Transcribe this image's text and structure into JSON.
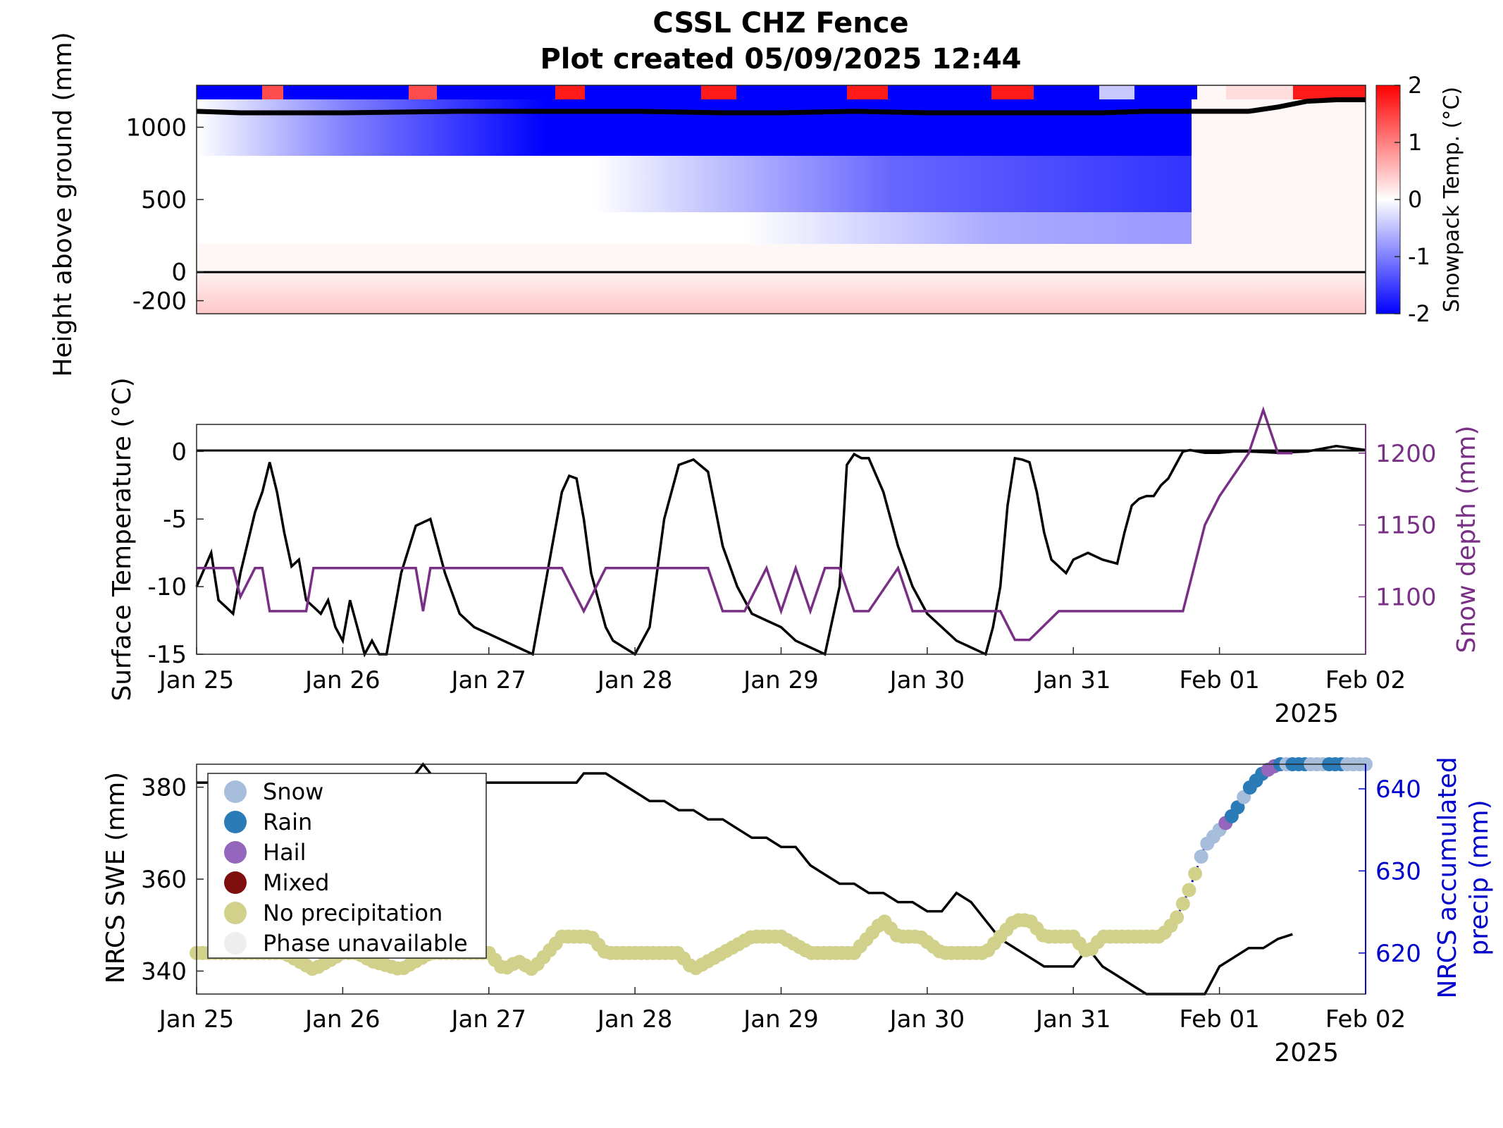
{
  "title": {
    "line1": "CSSL CHZ Fence",
    "line2": "Plot created 05/09/2025 12:44"
  },
  "colors": {
    "swe_line": "#000000",
    "snow_depth": "#7a2f86",
    "precip_line": "#0000cc",
    "cold": "#0000ff",
    "warm": "#ff0000",
    "snow": "#a6bddb",
    "rain": "#2b7bb9",
    "hail": "#9467bd",
    "mixed": "#7f0f0f",
    "no_precip": "#d2d18c",
    "unavailable": "#eeeeee"
  },
  "chart_data": [
    {
      "type": "heatmap",
      "name_panel": "snowpack temperature",
      "ylabel": "Height above ground (mm)",
      "ylim": [
        -290,
        1290
      ],
      "yticks": [
        -200,
        0,
        500,
        1000
      ],
      "colorbar": {
        "label": "Snowpack Temp. (°C)",
        "range": [
          -2,
          2
        ],
        "ticks": [
          -2,
          -1,
          0,
          1,
          2
        ],
        "colormap": "blue-white-red"
      },
      "xlim": [
        "2025-01-25",
        "2025-02-02"
      ],
      "sensor_rows_mm": [
        1250,
        1150,
        1050,
        950,
        850,
        750,
        650,
        550,
        450,
        350,
        250,
        150,
        50,
        -50,
        -150,
        -250
      ],
      "snow_surface_mm": [
        [
          0,
          1110
        ],
        [
          0.3,
          1100
        ],
        [
          0.5,
          1100
        ],
        [
          1,
          1100
        ],
        [
          1.8,
          1110
        ],
        [
          2.5,
          1110
        ],
        [
          3,
          1110
        ],
        [
          3.6,
          1100
        ],
        [
          4,
          1100
        ],
        [
          4.5,
          1110
        ],
        [
          5,
          1100
        ],
        [
          5.5,
          1100
        ],
        [
          6.2,
          1100
        ],
        [
          6.5,
          1110
        ],
        [
          7.2,
          1110
        ],
        [
          7.4,
          1140
        ],
        [
          7.6,
          1180
        ],
        [
          7.8,
          1190
        ],
        [
          8,
          1190
        ]
      ]
    },
    {
      "type": "line",
      "name_panel": "surface temperature and snow depth",
      "x_start": "2025-01-25",
      "xlim": [
        "Jan 25",
        "Feb 02"
      ],
      "xticks": [
        "Jan 25",
        "Jan 26",
        "Jan 27",
        "Jan 28",
        "Jan 29",
        "Jan 30",
        "Jan 31",
        "Feb 01",
        "Feb 02"
      ],
      "xyear": "2025",
      "ylabel": "Surface Temperature (°C)",
      "ylim": [
        -15,
        2
      ],
      "yticks": [
        -15,
        -10,
        -5,
        0
      ],
      "y2label": "Snow depth (mm)",
      "y2lim": [
        1060,
        1220
      ],
      "y2ticks": [
        1100,
        1150,
        1200
      ],
      "series": [
        {
          "axis": "left",
          "x_days": [
            0,
            0.1,
            0.15,
            0.2,
            0.25,
            0.3,
            0.4,
            0.45,
            0.5,
            0.55,
            0.6,
            0.65,
            0.7,
            0.75,
            0.8,
            0.85,
            0.9,
            0.95,
            1,
            1.05,
            1.1,
            1.15,
            1.2,
            1.25,
            1.3,
            1.4,
            1.5,
            1.6,
            1.7,
            1.8,
            1.9,
            2,
            2.1,
            2.2,
            2.3,
            2.4,
            2.5,
            2.55,
            2.6,
            2.65,
            2.7,
            2.75,
            2.8,
            2.85,
            3,
            3.1,
            3.2,
            3.3,
            3.4,
            3.5,
            3.6,
            3.7,
            3.8,
            3.9,
            4,
            4.1,
            4.2,
            4.3,
            4.4,
            4.45,
            4.5,
            4.55,
            4.6,
            4.7,
            4.8,
            4.9,
            5,
            5.1,
            5.2,
            5.3,
            5.4,
            5.45,
            5.5,
            5.55,
            5.6,
            5.65,
            5.7,
            5.75,
            5.8,
            5.85,
            5.9,
            5.95,
            6,
            6.1,
            6.2,
            6.3,
            6.35,
            6.4,
            6.45,
            6.5,
            6.55,
            6.6,
            6.65,
            6.7,
            6.75,
            6.8,
            6.85,
            6.9,
            7,
            7.1,
            7.2,
            7.4,
            7.6,
            7.8,
            8
          ],
          "values": [
            -10,
            -7.5,
            -11,
            -11.5,
            -12,
            -9,
            -4.5,
            -3,
            -0.8,
            -3,
            -6,
            -8.5,
            -8,
            -11,
            -11.5,
            -12,
            -11,
            -13,
            -14,
            -11,
            -13,
            -15,
            -14,
            -15.5,
            -15.5,
            -9,
            -5.5,
            -5,
            -9,
            -12,
            -13,
            -13.5,
            -14,
            -14.5,
            -15,
            -9,
            -3,
            -1.8,
            -2,
            -5,
            -9,
            -11,
            -13,
            -14,
            -15.5,
            -13,
            -5,
            -1,
            -0.6,
            -1.5,
            -7,
            -10,
            -12,
            -12.5,
            -13,
            -14,
            -14.5,
            -15.5,
            -10,
            -1,
            -0.2,
            -0.5,
            -0.5,
            -3,
            -7,
            -10,
            -12,
            -13,
            -14,
            -14.5,
            -15,
            -13,
            -10,
            -4,
            -0.5,
            -0.6,
            -0.8,
            -3,
            -6,
            -8,
            -8.5,
            -9,
            -8,
            -7.5,
            -8,
            -8.3,
            -6,
            -4,
            -3.5,
            -3.3,
            -3.3,
            -2.5,
            -2,
            -1,
            0,
            0.1,
            0,
            -0.1,
            -0.1,
            0,
            0,
            -0.1,
            0,
            0.4,
            0.1
          ]
        },
        {
          "axis": "right",
          "x_days": [
            0,
            0.25,
            0.3,
            0.4,
            0.45,
            0.5,
            0.75,
            0.8,
            1,
            1.5,
            1.55,
            1.6,
            1.65,
            2,
            2.5,
            2.65,
            2.8,
            3,
            3.5,
            3.6,
            3.75,
            3.9,
            4,
            4.1,
            4.2,
            4.3,
            4.4,
            4.5,
            4.6,
            4.8,
            4.9,
            5,
            5.2,
            5.5,
            5.6,
            5.7,
            5.9,
            6,
            6.5,
            6.75,
            6.9,
            7,
            7.2,
            7.3,
            7.4,
            7.5
          ],
          "values": [
            1120,
            1120,
            1100,
            1120,
            1120,
            1090,
            1090,
            1120,
            1120,
            1120,
            1090,
            1120,
            1120,
            1120,
            1120,
            1090,
            1120,
            1120,
            1120,
            1090,
            1090,
            1120,
            1090,
            1120,
            1090,
            1120,
            1120,
            1090,
            1090,
            1120,
            1090,
            1090,
            1090,
            1090,
            1070,
            1070,
            1090,
            1090,
            1090,
            1090,
            1150,
            1170,
            1200,
            1230,
            1200,
            1200
          ]
        }
      ]
    },
    {
      "type": "line",
      "name_panel": "NRCS SWE and accumulated precip",
      "x_start": "2025-01-25",
      "xlim": [
        "Jan 25",
        "Feb 02"
      ],
      "xticks": [
        "Jan 25",
        "Jan 26",
        "Jan 27",
        "Jan 28",
        "Jan 29",
        "Jan 30",
        "Jan 31",
        "Feb 01",
        "Feb 02"
      ],
      "xyear": "2025",
      "ylabel": "NRCS SWE (mm)",
      "ylim": [
        335,
        385
      ],
      "yticks": [
        340,
        360,
        380
      ],
      "y2label": "NRCS accumulated precip (mm)",
      "y2label_lines": [
        "NRCS accumulated",
        "precip (mm)"
      ],
      "y2lim": [
        615,
        643
      ],
      "y2ticks": [
        620,
        630,
        640
      ],
      "swe": {
        "x_days": [
          0,
          1,
          1.2,
          1.45,
          1.55,
          1.65,
          1.8,
          2,
          2.5,
          2.6,
          2.65,
          2.8,
          2.9,
          3,
          3.1,
          3.2,
          3.3,
          3.4,
          3.5,
          3.6,
          3.7,
          3.8,
          3.9,
          4,
          4.1,
          4.2,
          4.3,
          4.4,
          4.5,
          4.6,
          4.7,
          4.8,
          4.9,
          5,
          5.1,
          5.2,
          5.3,
          5.4,
          5.5,
          5.6,
          5.7,
          5.8,
          5.9,
          6,
          6.1,
          6.2,
          6.3,
          6.4,
          6.5,
          6.6,
          6.7,
          6.8,
          6.9,
          7,
          7.1,
          7.2,
          7.3,
          7.4,
          7.5
        ],
        "values": [
          381,
          381,
          381,
          381,
          386,
          381,
          381,
          381,
          381,
          381,
          383,
          383,
          381,
          379,
          377,
          377,
          375,
          375,
          373,
          373,
          371,
          369,
          369,
          367,
          367,
          363,
          361,
          359,
          359,
          357,
          357,
          355,
          355,
          353,
          353,
          357,
          355,
          351,
          347,
          345,
          343,
          341,
          341,
          341,
          345,
          341,
          339,
          337,
          335,
          335,
          335,
          335,
          335,
          341,
          343,
          345,
          345,
          347,
          348
        ]
      },
      "precip": {
        "x_days": [
          0,
          0.6,
          0.8,
          1,
          1.1,
          1.2,
          1.4,
          1.6,
          2,
          2.1,
          2.2,
          2.3,
          2.4,
          2.5,
          2.6,
          2.7,
          2.8,
          3,
          3.3,
          3.4,
          3.6,
          3.8,
          3.9,
          4,
          4.2,
          4.5,
          4.6,
          4.7,
          4.8,
          4.95,
          5.1,
          5.2,
          5.4,
          5.5,
          5.6,
          5.7,
          5.8,
          6,
          6.1,
          6.2,
          6.5,
          6.6,
          6.7,
          6.8,
          6.9,
          7,
          7.1,
          7.2,
          7.3,
          7.4,
          8
        ],
        "values": [
          620,
          620,
          618,
          620,
          620,
          619,
          618,
          620,
          620,
          618,
          619,
          618,
          620,
          622,
          622,
          622,
          620,
          620,
          620,
          618,
          620,
          622,
          622,
          622,
          620,
          620,
          622,
          624,
          622,
          622,
          620,
          620,
          620,
          622,
          624,
          624,
          622,
          622,
          620,
          622,
          622,
          622,
          624,
          628,
          633,
          635,
          637,
          640,
          642,
          643,
          643
        ]
      },
      "precip_points_phase": "no_precipitation until ~Jan 31 12:00; then snow/rain/hail mix reaching 643 mm",
      "legend": {
        "location": "upper-left",
        "entries": [
          "Snow",
          "Rain",
          "Hail",
          "Mixed",
          "No precipitation",
          "Phase unavailable"
        ]
      }
    }
  ]
}
